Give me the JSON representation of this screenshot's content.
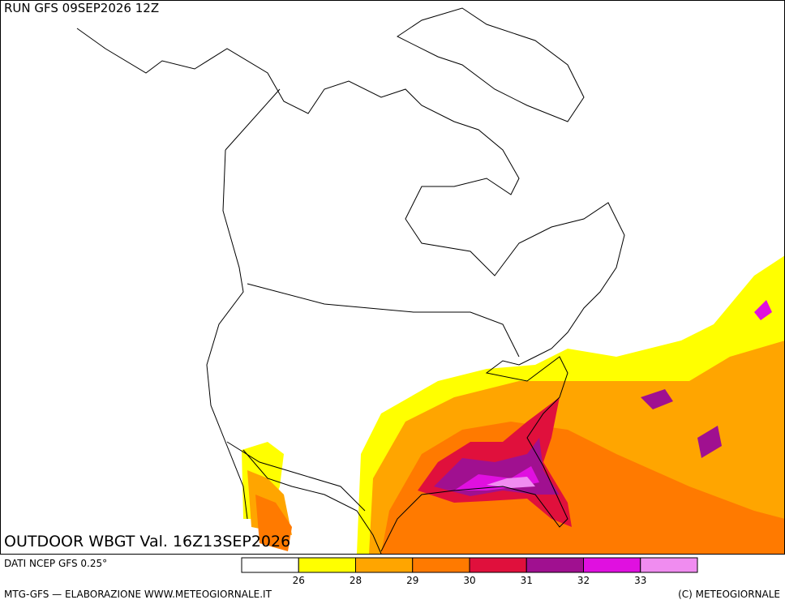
{
  "header": {
    "run": "RUN GFS 09SEP2026 12Z"
  },
  "map": {
    "title": "OUTDOOR WBGT Val. 16Z13SEP2026"
  },
  "legend": {
    "colors": [
      "#ffffff",
      "#ffff00",
      "#ffa500",
      "#ff7a00",
      "#e0103c",
      "#a01090",
      "#e010e0",
      "#f08cf0"
    ],
    "ticks": [
      26,
      28,
      29,
      30,
      31,
      32,
      33
    ]
  },
  "footer": {
    "source": "DATI NCEP GFS 0.25°",
    "credit": "MTG-GFS — ELABORAZIONE WWW.METEOGIORNALE.IT",
    "copyright": "(C) METEOGIORNALE"
  }
}
